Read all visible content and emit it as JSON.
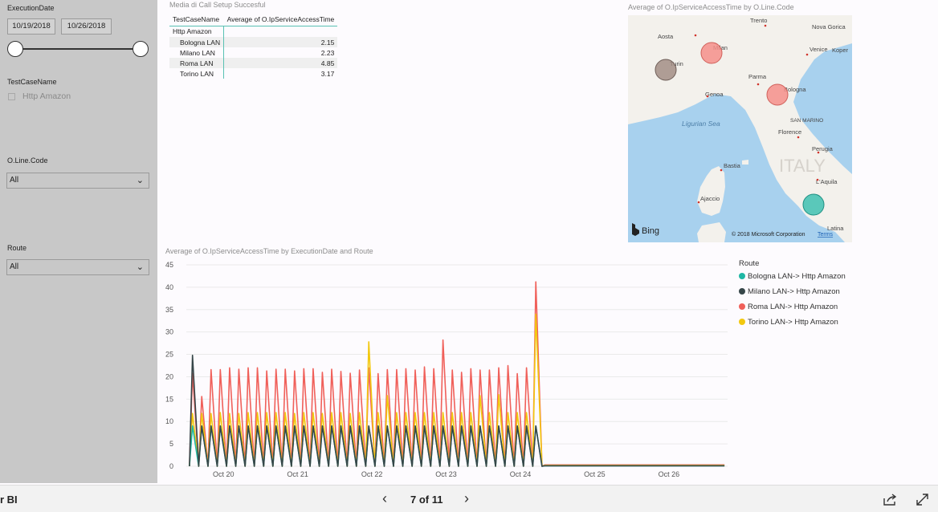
{
  "filters": {
    "execution_date": {
      "label": "ExecutionDate",
      "start": "10/19/2018",
      "end": "10/26/2018"
    },
    "test_case_name": {
      "label": "TestCaseName",
      "option": "Http Amazon"
    },
    "line_code": {
      "label": "O.Line.Code",
      "value": "All"
    },
    "route": {
      "label": "Route",
      "value": "All"
    }
  },
  "matrix": {
    "title": "Media di Call Setup Succesful",
    "col1": "TestCaseName",
    "col2": "Average of O.IpServiceAccessTime",
    "group": "Http Amazon",
    "rows": [
      {
        "name": "Bologna LAN",
        "value": "2.15"
      },
      {
        "name": "Milano LAN",
        "value": "2.23"
      },
      {
        "name": "Roma LAN",
        "value": "4.85"
      },
      {
        "name": "Torino LAN",
        "value": "3.17"
      }
    ]
  },
  "map": {
    "title": "Average of O.IpServiceAccessTime by O.Line.Code",
    "labels": {
      "trento": "Trento",
      "nova_gorica": "Nova Gorica",
      "aosta": "Aosta",
      "milan": "Milan",
      "venice": "Venice",
      "koper": "Koper",
      "turin": "Turin",
      "parma": "Parma",
      "genoa": "Genoa",
      "bologna": "Bologna",
      "ligurian_sea": "Ligurian Sea",
      "san_marino": "SAN MARINO",
      "florence": "Florence",
      "perugia": "Perugia",
      "italy": "ITALY",
      "bastia": "Bastia",
      "laquila": "L'Aquila",
      "ajaccio": "Ajaccio",
      "latina": "Latina"
    },
    "bing": "Bing",
    "copyright": "© 2018 Microsoft Corporation",
    "terms": "Terms",
    "colors": {
      "water": "#a8d1ee",
      "land": "#f3f1ec",
      "roma": "#3ec1b1",
      "milano": "#9e8880",
      "bologna": "#f48f8b",
      "torino": "#f48f8b"
    }
  },
  "chart_data": {
    "type": "line",
    "title": "Average of O.IpServiceAccessTime by ExecutionDate and Route",
    "ylim": [
      0,
      45
    ],
    "yticks": [
      0,
      5,
      10,
      15,
      20,
      25,
      30,
      35,
      40,
      45
    ],
    "xlim": [
      "2018-10-19T12:00",
      "2018-10-26T19:00"
    ],
    "xticks": [
      {
        "label": "Oct 20",
        "date": "2018-10-20T00:00"
      },
      {
        "label": "Oct 21",
        "date": "2018-10-21T00:00"
      },
      {
        "label": "Oct 22",
        "date": "2018-10-22T00:00"
      },
      {
        "label": "Oct 23",
        "date": "2018-10-23T00:00"
      },
      {
        "label": "Oct 24",
        "date": "2018-10-24T00:00"
      },
      {
        "label": "Oct 25",
        "date": "2018-10-25T00:00"
      },
      {
        "label": "Oct 26",
        "date": "2018-10-26T00:00"
      }
    ],
    "legend_title": "Route",
    "legend_position": "top-right",
    "grid": true,
    "series": [
      {
        "name": "Roma LAN-> Http Amazon",
        "color": "#f0605a",
        "peaks": [
          20.8,
          15.6,
          21.6,
          21.6,
          22,
          21.7,
          22,
          22,
          21.3,
          21.7,
          21.7,
          21.3,
          21.8,
          21.8,
          21,
          21.7,
          21.2,
          20.8,
          21.5,
          22,
          20.7,
          21.6,
          21.6,
          21.8,
          21.5,
          22.2,
          21.8,
          28.2,
          21.5,
          21,
          21.8,
          21.5,
          21.5,
          22,
          22.5,
          20.7,
          22,
          41.2
        ],
        "after": 0.3
      },
      {
        "name": "Torino LAN-> Http Amazon",
        "color": "#f2c80f",
        "peaks": [
          11.8,
          11.8,
          11.8,
          12,
          11.8,
          11.8,
          12,
          12,
          12,
          12,
          12,
          11.8,
          12,
          12,
          11.8,
          12,
          12,
          11.8,
          12,
          27.8,
          12,
          15.8,
          12,
          12,
          12,
          12,
          12,
          12,
          12,
          12,
          12,
          15.8,
          12,
          16,
          12,
          12,
          12,
          34
        ],
        "after": 0.2
      },
      {
        "name": "Bologna LAN-> Http Amazon",
        "color": "#1fb7a4",
        "peaks": [
          9,
          9,
          9,
          9,
          9,
          9,
          9,
          9,
          9,
          9,
          9,
          9,
          9,
          9,
          9,
          9,
          9,
          9,
          9,
          9,
          9,
          9,
          9,
          9,
          9,
          9,
          9,
          9,
          9,
          9,
          9,
          9,
          9,
          9,
          9,
          9,
          9,
          9
        ],
        "after": 0.1
      },
      {
        "name": "Milano LAN-> Http Amazon",
        "color": "#374649",
        "peaks": [
          24.8,
          9,
          9,
          9,
          9,
          9,
          9,
          9,
          9,
          9,
          9,
          9,
          9,
          9,
          9,
          9,
          9,
          9,
          9,
          9,
          9,
          9,
          9,
          9,
          9,
          9,
          9,
          9,
          9,
          9,
          9,
          9,
          9,
          9,
          9,
          9,
          9,
          9
        ],
        "after": 0.1
      }
    ],
    "legend": [
      {
        "name": "Bologna LAN-> Http Amazon",
        "color": "#1fb7a4"
      },
      {
        "name": "Milano LAN-> Http Amazon",
        "color": "#374649"
      },
      {
        "name": "Roma LAN-> Http Amazon",
        "color": "#f0605a"
      },
      {
        "name": "Torino LAN-> Http Amazon",
        "color": "#f2c80f"
      }
    ]
  },
  "footer": {
    "brand": "r BI",
    "page": "7 of 11"
  }
}
